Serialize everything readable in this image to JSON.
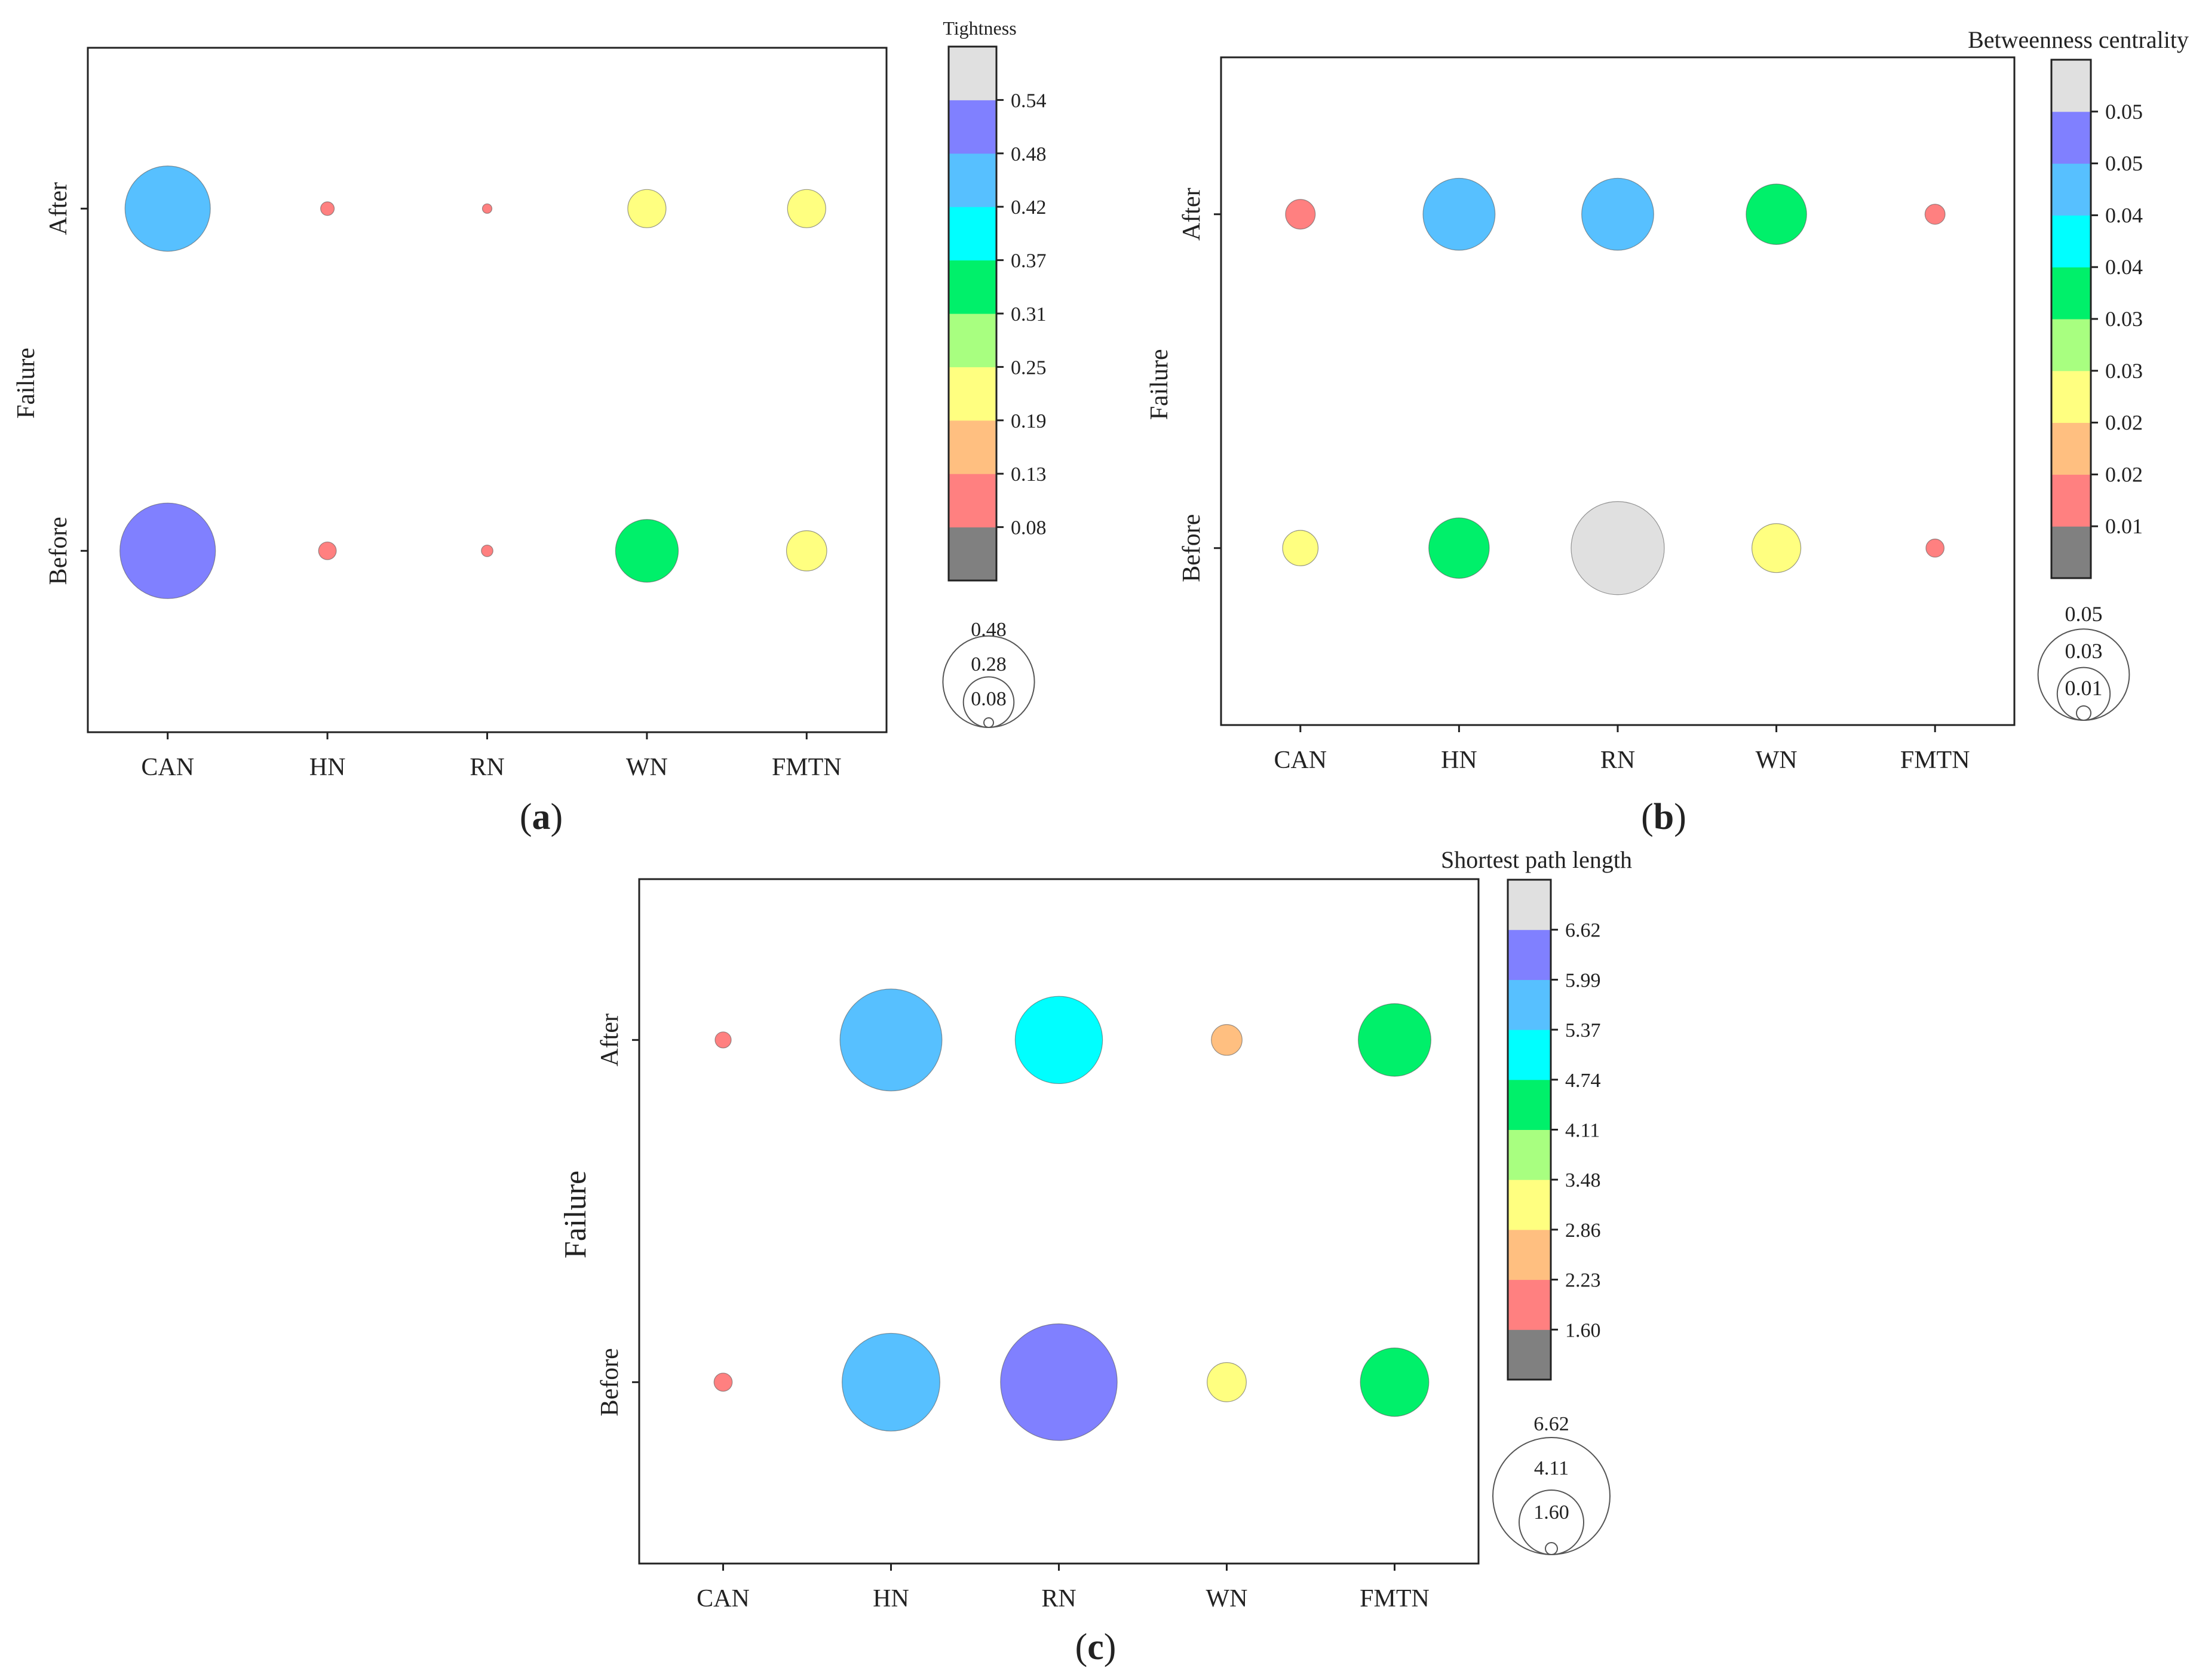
{
  "chart_data": [
    {
      "type": "bubble",
      "panel_label": "(a)",
      "x_categories": [
        "CAN",
        "HN",
        "RN",
        "WN",
        "FMTN"
      ],
      "y_categories": [
        "Before",
        "After"
      ],
      "ylabel": "Failure",
      "colorbar": {
        "title": "Tightness",
        "tick_labels": [
          "0.08",
          "0.13",
          "0.19",
          "0.25",
          "0.31",
          "0.37",
          "0.42",
          "0.48",
          "0.54"
        ],
        "colors": [
          "#808080",
          "#ff8080",
          "#ffbf80",
          "#ffff80",
          "#a8ff80",
          "#00f06a",
          "#00ffff",
          "#57c0ff",
          "#8080ff",
          "#e0e0e0"
        ]
      },
      "size_legend": {
        "labels": [
          "0.48",
          "0.28",
          "0.08"
        ],
        "values": [
          0.48,
          0.28,
          0.08
        ]
      },
      "points": [
        {
          "x": "CAN",
          "y": "After",
          "value": 0.45
        },
        {
          "x": "HN",
          "y": "After",
          "value": 0.1
        },
        {
          "x": "RN",
          "y": "After",
          "value": 0.08
        },
        {
          "x": "WN",
          "y": "After",
          "value": 0.22
        },
        {
          "x": "FMTN",
          "y": "After",
          "value": 0.22
        },
        {
          "x": "CAN",
          "y": "Before",
          "value": 0.5
        },
        {
          "x": "HN",
          "y": "Before",
          "value": 0.12
        },
        {
          "x": "RN",
          "y": "Before",
          "value": 0.09
        },
        {
          "x": "WN",
          "y": "Before",
          "value": 0.34
        },
        {
          "x": "FMTN",
          "y": "Before",
          "value": 0.23
        }
      ]
    },
    {
      "type": "bubble",
      "panel_label": "(b)",
      "x_categories": [
        "CAN",
        "HN",
        "RN",
        "WN",
        "FMTN"
      ],
      "y_categories": [
        "Before",
        "After"
      ],
      "ylabel": "Failure",
      "colorbar": {
        "title": "Betweenness centrality",
        "tick_labels": [
          "0.01",
          "0.02",
          "0.02",
          "0.03",
          "0.03",
          "0.04",
          "0.04",
          "0.05",
          "0.05"
        ],
        "colors": [
          "#808080",
          "#ff8080",
          "#ffbf80",
          "#ffff80",
          "#a8ff80",
          "#00f06a",
          "#00ffff",
          "#57c0ff",
          "#8080ff",
          "#e0e0e0"
        ]
      },
      "size_legend": {
        "labels": [
          "0.05",
          "0.03",
          "0.01"
        ],
        "values": [
          0.05,
          0.03,
          0.01
        ]
      },
      "points": [
        {
          "x": "CAN",
          "y": "After",
          "value": 0.018
        },
        {
          "x": "HN",
          "y": "After",
          "value": 0.04
        },
        {
          "x": "RN",
          "y": "After",
          "value": 0.04
        },
        {
          "x": "WN",
          "y": "After",
          "value": 0.034
        },
        {
          "x": "FMTN",
          "y": "After",
          "value": 0.013
        },
        {
          "x": "CAN",
          "y": "Before",
          "value": 0.021
        },
        {
          "x": "HN",
          "y": "Before",
          "value": 0.034
        },
        {
          "x": "RN",
          "y": "Before",
          "value": 0.051
        },
        {
          "x": "WN",
          "y": "Before",
          "value": 0.028
        },
        {
          "x": "FMTN",
          "y": "Before",
          "value": 0.012
        }
      ]
    },
    {
      "type": "bubble",
      "panel_label": "(c)",
      "x_categories": [
        "CAN",
        "HN",
        "RN",
        "WN",
        "FMTN"
      ],
      "y_categories": [
        "Before",
        "After"
      ],
      "ylabel": "Failure",
      "colorbar": {
        "title": "Shortest path length",
        "tick_labels": [
          "1.60",
          "2.23",
          "2.86",
          "3.48",
          "4.11",
          "4.74",
          "5.37",
          "5.99",
          "6.62"
        ],
        "colors": [
          "#808080",
          "#ff8080",
          "#ffbf80",
          "#ffff80",
          "#a8ff80",
          "#00f06a",
          "#00ffff",
          "#57c0ff",
          "#8080ff",
          "#e0e0e0"
        ]
      },
      "size_legend": {
        "labels": [
          "6.62",
          "4.11",
          "1.60"
        ],
        "values": [
          6.62,
          4.11,
          1.6
        ]
      },
      "points": [
        {
          "x": "CAN",
          "y": "After",
          "value": 1.8
        },
        {
          "x": "HN",
          "y": "After",
          "value": 5.9
        },
        {
          "x": "RN",
          "y": "After",
          "value": 5.2
        },
        {
          "x": "WN",
          "y": "After",
          "value": 2.5
        },
        {
          "x": "FMTN",
          "y": "After",
          "value": 4.5
        },
        {
          "x": "CAN",
          "y": "Before",
          "value": 1.9
        },
        {
          "x": "HN",
          "y": "Before",
          "value": 5.7
        },
        {
          "x": "RN",
          "y": "Before",
          "value": 6.6
        },
        {
          "x": "WN",
          "y": "Before",
          "value": 2.9
        },
        {
          "x": "FMTN",
          "y": "Before",
          "value": 4.3
        }
      ]
    }
  ]
}
